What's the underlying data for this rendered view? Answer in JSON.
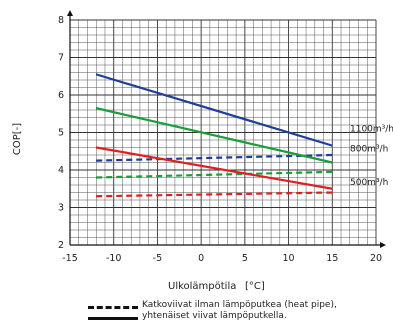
{
  "chart_data": {
    "type": "line",
    "xlabel": "Ulkolämpötila",
    "xunit": "[°C]",
    "ylabel": "COP[-]",
    "xlim": [
      -15,
      20
    ],
    "ylim": [
      2,
      8
    ],
    "xticks": [
      -15,
      -10,
      -5,
      0,
      5,
      10,
      15,
      20
    ],
    "yticks": [
      2,
      3,
      4,
      5,
      6,
      7,
      8
    ],
    "grid": true,
    "series": [
      {
        "name": "1100m³/h",
        "style": "solid",
        "color": "#1f3d99",
        "x": [
          -12,
          15
        ],
        "y": [
          6.55,
          4.65
        ]
      },
      {
        "name": "1100m³/h",
        "style": "dashed",
        "color": "#1f3d99",
        "x": [
          -12,
          15
        ],
        "y": [
          4.25,
          4.4
        ]
      },
      {
        "name": "800m³/h",
        "style": "solid",
        "color": "#1a9e3a",
        "x": [
          -12,
          15
        ],
        "y": [
          5.65,
          4.2
        ]
      },
      {
        "name": "800m³/h",
        "style": "dashed",
        "color": "#1a9e3a",
        "x": [
          -12,
          15
        ],
        "y": [
          3.8,
          3.95
        ]
      },
      {
        "name": "500m³/h",
        "style": "solid",
        "color": "#e02020",
        "x": [
          -12,
          15
        ],
        "y": [
          4.6,
          3.5
        ]
      },
      {
        "name": "500m³/h",
        "style": "dashed",
        "color": "#e02020",
        "x": [
          -12,
          15
        ],
        "y": [
          3.3,
          3.4
        ]
      }
    ],
    "annotations": [
      "1100m³/h",
      "800m³/h",
      "500m³/h"
    ],
    "legend": {
      "dashed_text": "Katkoviivat ilman lämpöputkea (heat pipe),",
      "solid_text": "yhtenäiset viivat lämpöputkella."
    }
  }
}
